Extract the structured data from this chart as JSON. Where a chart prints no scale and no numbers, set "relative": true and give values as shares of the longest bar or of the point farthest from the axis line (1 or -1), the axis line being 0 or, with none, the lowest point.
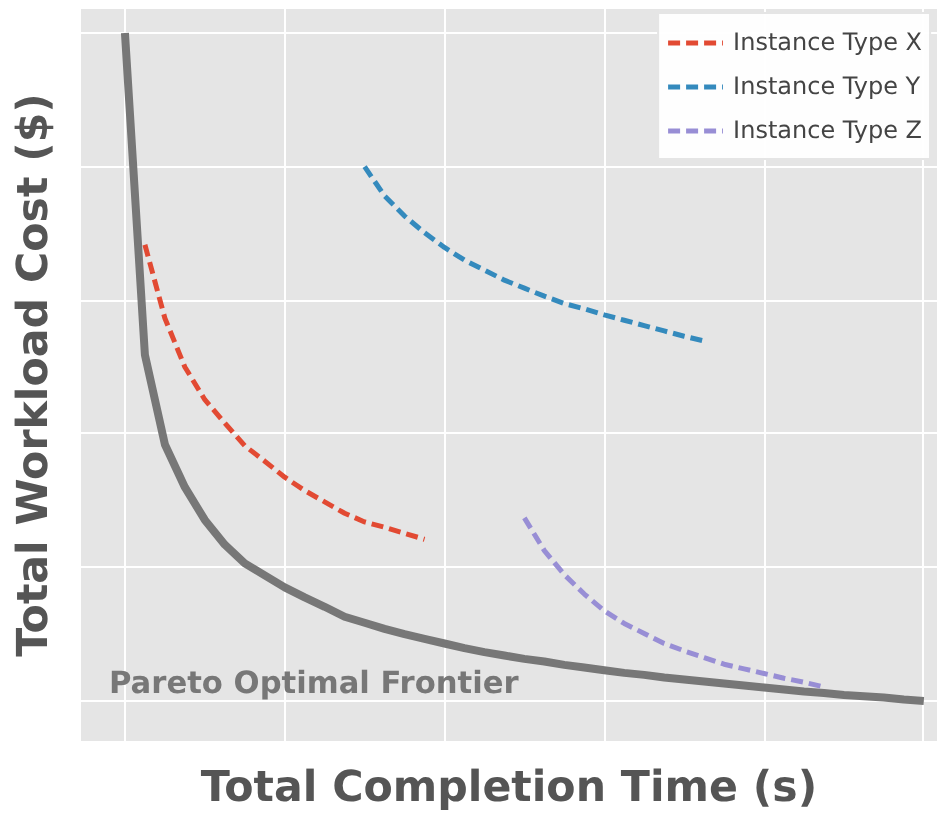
{
  "chart_data": {
    "type": "line",
    "relative": true,
    "xlabel": "Total Completion Time (s)",
    "ylabel": "Total Workload Cost ($)",
    "grid": true,
    "legend": "top right",
    "categories": [
      null,
      null,
      null,
      null,
      null,
      null,
      null,
      null,
      null,
      null,
      null,
      null,
      null,
      null,
      null,
      null,
      null,
      null,
      null,
      null,
      null,
      null,
      null,
      null,
      null,
      null,
      null,
      null,
      null,
      null,
      null,
      null,
      null,
      null,
      null,
      null,
      null,
      null,
      null,
      null,
      null
    ],
    "series": [
      {
        "name": "Pareto Optimal Frontier",
        "color": "#777777",
        "line_style": "solid",
        "values": [
          1,
          0.518,
          0.384,
          0.32,
          0.271,
          0.234,
          0.206,
          0.188,
          0.17,
          0.155,
          0.141,
          0.126,
          0.117,
          0.108,
          0.1,
          0.093,
          0.086,
          0.079,
          0.073,
          0.068,
          0.063,
          0.059,
          0.054,
          0.05,
          0.046,
          0.042,
          0.039,
          0.035,
          0.032,
          0.029,
          0.026,
          0.023,
          0.02,
          0.017,
          0.014,
          0.012,
          0.009,
          0.007,
          0.005,
          0.002,
          0
        ]
      },
      {
        "name": "Instance Type X",
        "color": "#e24a33",
        "line_style": "dashed",
        "values": [
          null,
          0.683,
          0.573,
          0.5,
          0.451,
          0.416,
          0.382,
          0.359,
          0.335,
          0.315,
          0.298,
          0.281,
          0.268,
          0.26,
          0.251,
          0.242,
          null,
          null,
          null,
          null,
          null,
          null,
          null,
          null,
          null,
          null,
          null,
          null,
          null,
          null,
          null,
          null,
          null,
          null,
          null,
          null,
          null,
          null,
          null,
          null,
          null
        ]
      },
      {
        "name": "Instance Type Y",
        "color": "#348abd",
        "line_style": "dashed",
        "values": [
          null,
          null,
          null,
          null,
          null,
          null,
          null,
          null,
          null,
          null,
          null,
          null,
          0.8,
          0.756,
          0.726,
          0.701,
          0.679,
          0.66,
          0.645,
          0.63,
          0.618,
          0.606,
          0.595,
          0.587,
          0.578,
          0.57,
          0.562,
          0.554,
          0.546,
          0.539,
          null,
          null,
          null,
          null,
          null,
          null,
          null,
          null,
          null,
          null,
          null
        ]
      },
      {
        "name": "Instance Type Z",
        "color": "#988ed5",
        "line_style": "dashed",
        "values": [
          null,
          null,
          null,
          null,
          null,
          null,
          null,
          null,
          null,
          null,
          null,
          null,
          null,
          null,
          null,
          null,
          null,
          null,
          null,
          null,
          0.274,
          0.225,
          0.189,
          0.16,
          0.135,
          0.116,
          0.101,
          0.086,
          0.075,
          0.065,
          0.055,
          0.048,
          0.041,
          0.034,
          0.028,
          0.021,
          null,
          null,
          null,
          null,
          null
        ]
      }
    ]
  }
}
